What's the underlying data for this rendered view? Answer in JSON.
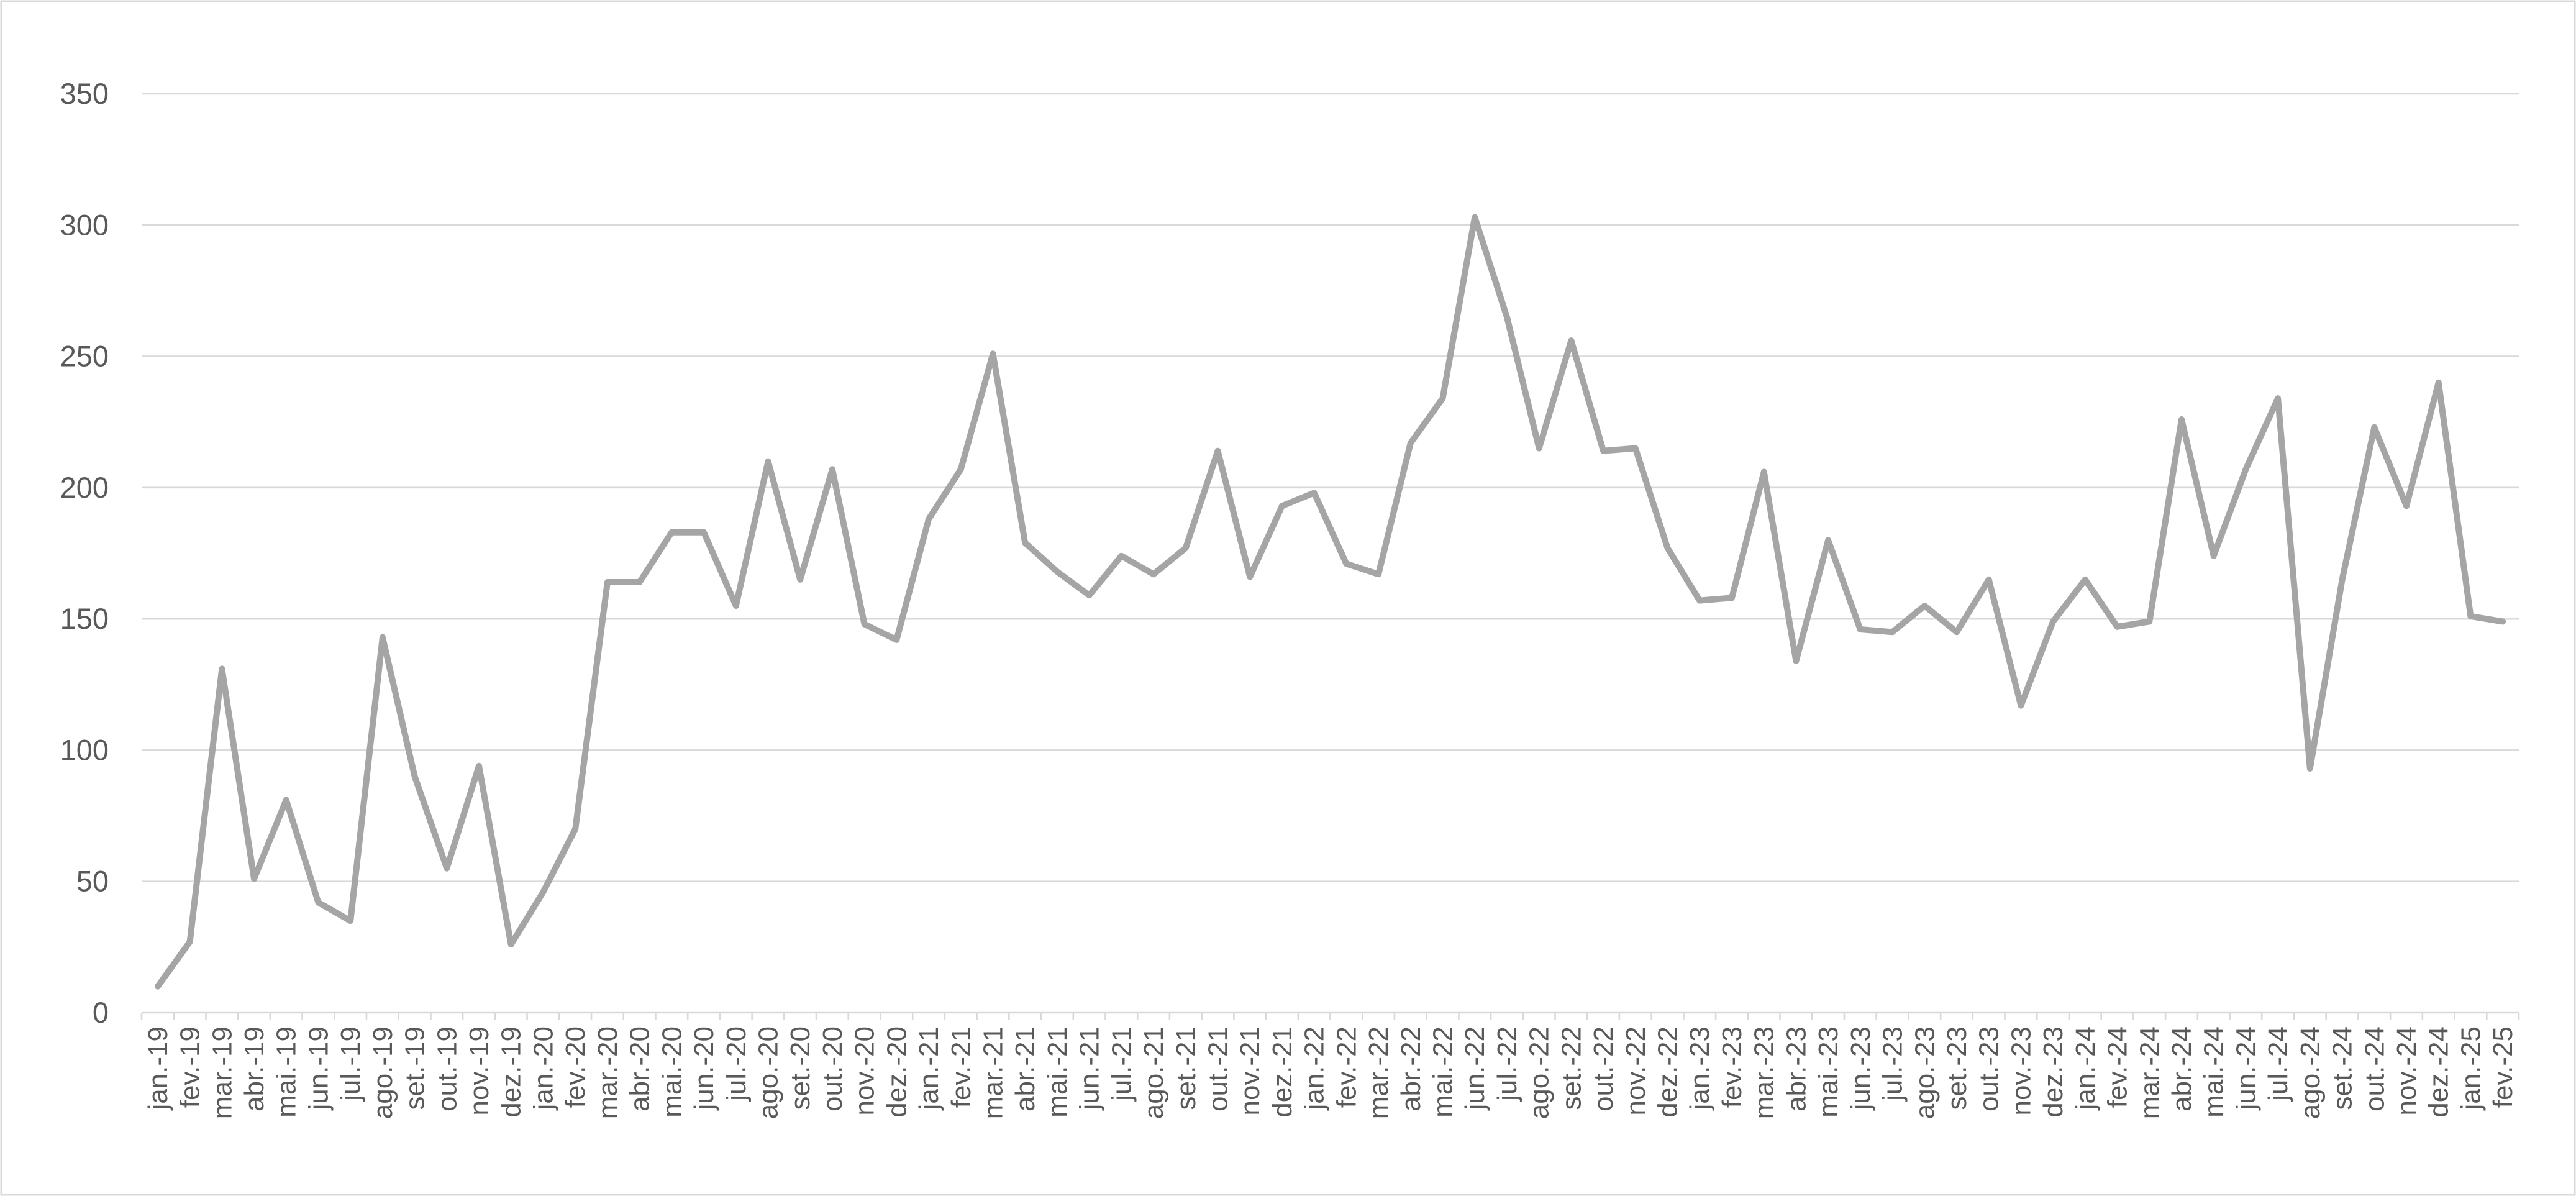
{
  "chart_data": {
    "type": "line",
    "title": "",
    "xlabel": "",
    "ylabel": "",
    "ylim": [
      0,
      350
    ],
    "yticks": [
      0,
      50,
      100,
      150,
      200,
      250,
      300,
      350
    ],
    "grid": "horizontal",
    "legend": "none",
    "colors": {
      "series": "#a5a5a5",
      "grid": "#d9d9d9",
      "tick_text": "#595959",
      "background": "#ffffff"
    },
    "categories": [
      "jan.-19",
      "fev.-19",
      "mar.-19",
      "abr.-19",
      "mai.-19",
      "jun.-19",
      "jul.-19",
      "ago.-19",
      "set.-19",
      "out.-19",
      "nov.-19",
      "dez.-19",
      "jan.-20",
      "fev.-20",
      "mar.-20",
      "abr.-20",
      "mai.-20",
      "jun.-20",
      "jul.-20",
      "ago.-20",
      "set.-20",
      "out.-20",
      "nov.-20",
      "dez.-20",
      "jan.-21",
      "fev.-21",
      "mar.-21",
      "abr.-21",
      "mai.-21",
      "jun.-21",
      "jul.-21",
      "ago.-21",
      "set.-21",
      "out.-21",
      "nov.-21",
      "dez.-21",
      "jan.-22",
      "fev.-22",
      "mar.-22",
      "abr.-22",
      "mai.-22",
      "jun.-22",
      "jul.-22",
      "ago.-22",
      "set.-22",
      "out.-22",
      "nov.-22",
      "dez.-22",
      "jan.-23",
      "fev.-23",
      "mar.-23",
      "abr.-23",
      "mai.-23",
      "jun.-23",
      "jul.-23",
      "ago.-23",
      "set.-23",
      "out.-23",
      "nov.-23",
      "dez.-23",
      "jan.-24",
      "fev.-24",
      "mar.-24",
      "abr.-24",
      "mai.-24",
      "jun.-24",
      "jul.-24",
      "ago.-24",
      "set.-24",
      "out.-24",
      "nov.-24",
      "dez.-24",
      "jan.-25",
      "fev.-25"
    ],
    "series": [
      {
        "values": [
          10,
          27,
          131,
          51,
          81,
          42,
          35,
          143,
          90,
          55,
          94,
          26,
          46,
          70,
          164,
          164,
          183,
          183,
          155,
          210,
          165,
          207,
          148,
          142,
          188,
          207,
          251,
          179,
          168,
          159,
          174,
          167,
          177,
          214,
          166,
          193,
          198,
          171,
          167,
          217,
          234,
          303,
          265,
          215,
          256,
          214,
          215,
          177,
          157,
          158,
          206,
          134,
          180,
          146,
          145,
          155,
          145,
          165,
          117,
          149,
          165,
          147,
          149,
          226,
          174,
          207,
          234,
          93,
          165,
          223,
          193,
          240,
          151,
          149
        ]
      }
    ]
  }
}
